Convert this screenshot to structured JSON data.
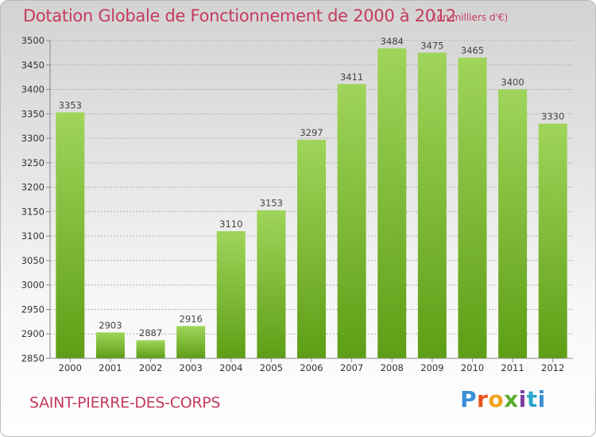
{
  "title": "Dotation Globale de Fonctionnement de 2000 à 2012",
  "unit_note": "(en milliers d'€)",
  "commune": "SAINT-PIERRE-DES-CORPS",
  "logo_text": "Proxiti",
  "colors": {
    "title": "#c43b5e",
    "bar_light": "#9fd55a",
    "bar_dark": "#5e9e16",
    "grid": "#b0b0b0",
    "axis": "#888888"
  },
  "chart_data": {
    "type": "bar",
    "title": "Dotation Globale de Fonctionnement de 2000 à 2012",
    "xlabel": "",
    "ylabel": "",
    "categories": [
      "2000",
      "2001",
      "2002",
      "2003",
      "2004",
      "2005",
      "2006",
      "2007",
      "2008",
      "2009",
      "2010",
      "2011",
      "2012"
    ],
    "values": [
      3353,
      2903,
      2887,
      2916,
      3110,
      3153,
      3297,
      3411,
      3484,
      3475,
      3465,
      3400,
      3330
    ],
    "value_labels": [
      "3353",
      "2903",
      "2887",
      "2916",
      "3110",
      "3153",
      "3297",
      "3411",
      "3484",
      "3475",
      "3465",
      "3400",
      "3330"
    ],
    "ylim": [
      2850,
      3500
    ],
    "yticks": [
      2850,
      2900,
      2950,
      3000,
      3050,
      3100,
      3150,
      3200,
      3250,
      3300,
      3350,
      3400,
      3450,
      3500
    ],
    "grid": true,
    "legend": "none"
  }
}
